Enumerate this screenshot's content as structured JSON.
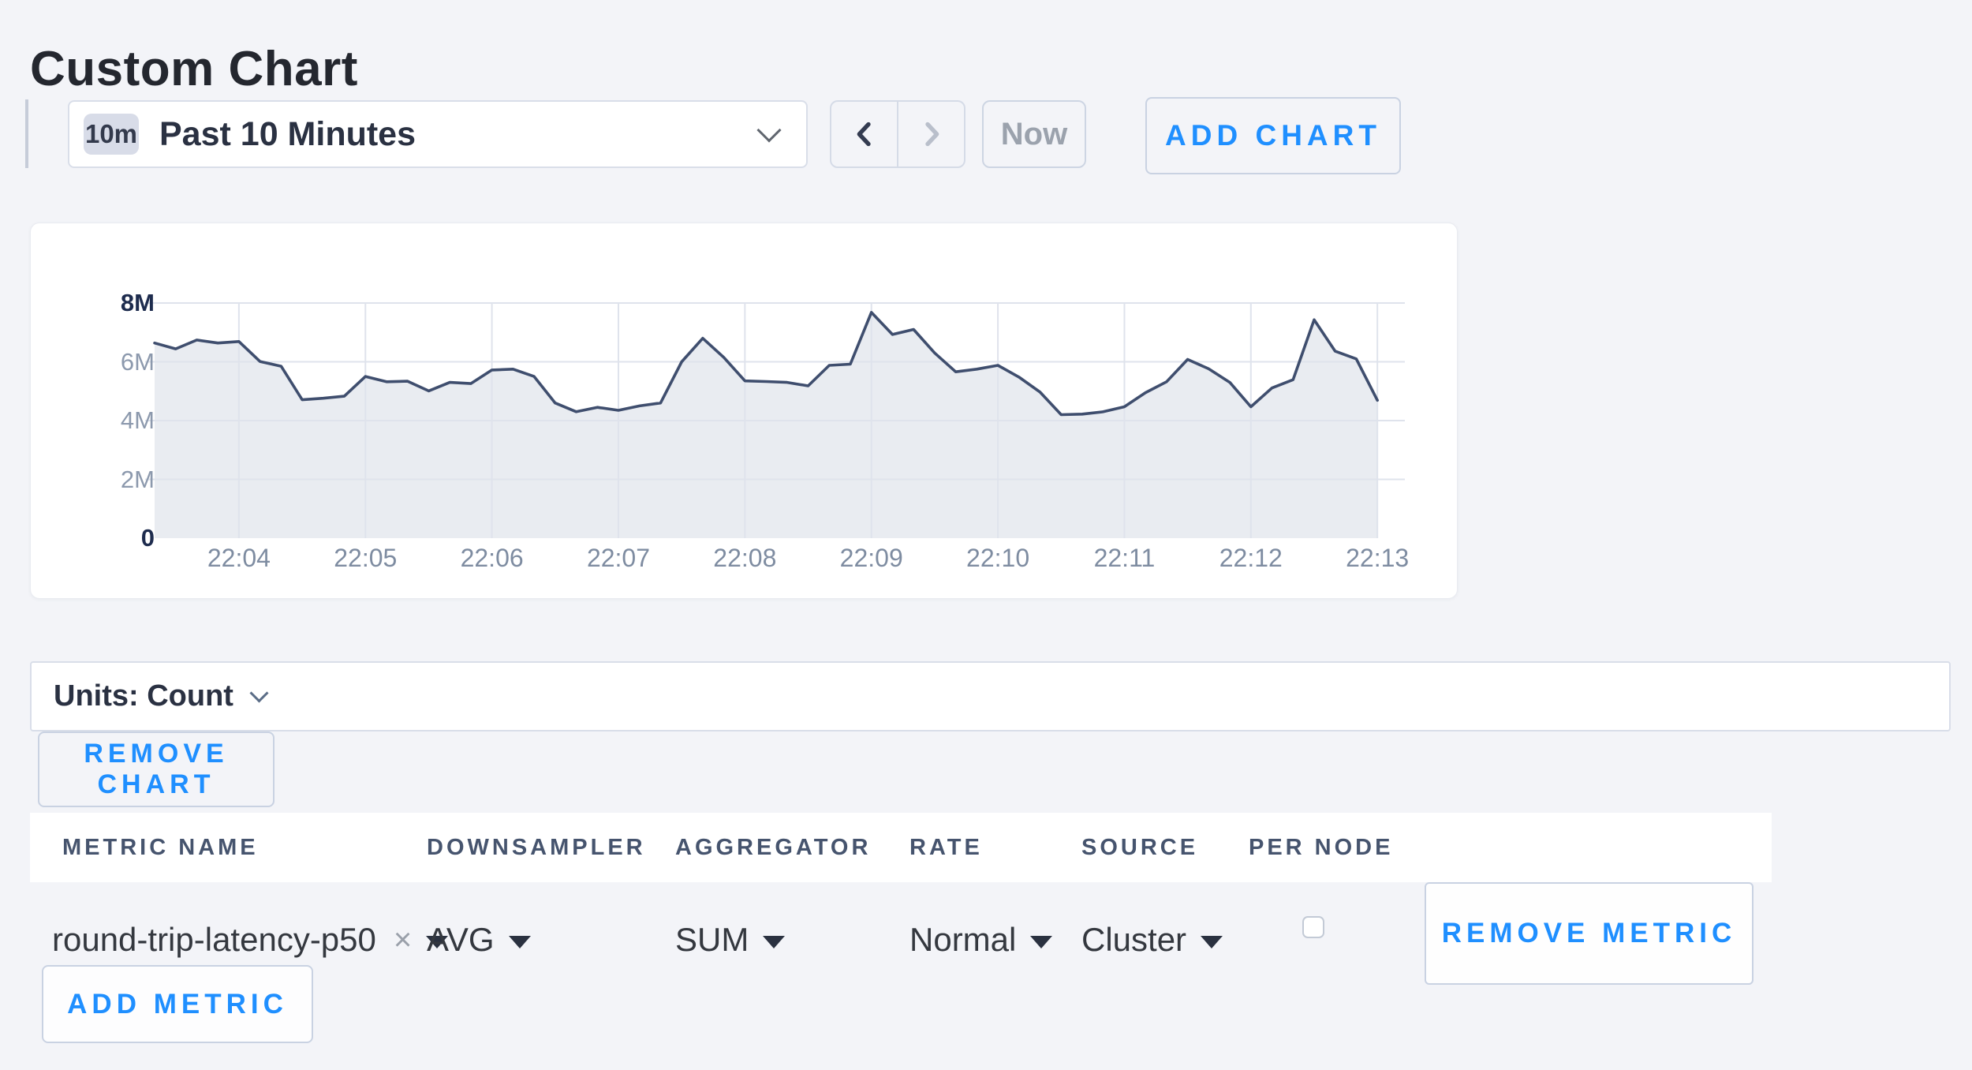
{
  "page": {
    "title": "Custom Chart"
  },
  "toolbar": {
    "time_badge": "10m",
    "time_range": "Past 10 Minutes",
    "now_label": "Now",
    "add_chart_label": "ADD CHART"
  },
  "chart_data": {
    "type": "area",
    "title": "",
    "xlabel": "",
    "ylabel": "",
    "legend": false,
    "grid": true,
    "x_start_time": "22:03:20",
    "x_interval_seconds": 10,
    "x_ticks": [
      "22:04",
      "22:05",
      "22:06",
      "22:07",
      "22:08",
      "22:09",
      "22:10",
      "22:11",
      "22:12",
      "22:13"
    ],
    "x_tick_first_index": 4,
    "x_tick_every": 6,
    "ylim_millions": [
      0,
      8
    ],
    "y_ticks": [
      {
        "label": "0",
        "value_millions": 0,
        "strong": true
      },
      {
        "label": "2M",
        "value_millions": 2,
        "strong": false
      },
      {
        "label": "4M",
        "value_millions": 4,
        "strong": false
      },
      {
        "label": "6M",
        "value_millions": 6,
        "strong": false
      },
      {
        "label": "8M",
        "value_millions": 8,
        "strong": true
      }
    ],
    "line_color": "#3f4e6e",
    "fill_color": "#e9ecf1",
    "grid_color": "#dfe3ec",
    "series": [
      {
        "name": "round-trip-latency-p50",
        "unit": "count",
        "values_in_millions": [
          6.64,
          6.44,
          6.74,
          6.64,
          6.69,
          6.01,
          5.85,
          4.71,
          4.76,
          4.83,
          5.5,
          5.32,
          5.34,
          5.01,
          5.3,
          5.26,
          5.72,
          5.75,
          5.5,
          4.6,
          4.3,
          4.45,
          4.35,
          4.5,
          4.6,
          6.0,
          6.8,
          6.15,
          5.35,
          5.33,
          5.3,
          5.18,
          5.88,
          5.92,
          7.68,
          6.93,
          7.1,
          6.3,
          5.66,
          5.75,
          5.88,
          5.48,
          4.97,
          4.2,
          4.22,
          4.3,
          4.47,
          4.95,
          5.32,
          6.08,
          5.76,
          5.3,
          4.47,
          5.11,
          5.39,
          7.43,
          6.36,
          6.1,
          4.69
        ]
      }
    ]
  },
  "units_bar": {
    "label": "Units: Count"
  },
  "chart_actions": {
    "remove_chart_label": "REMOVE CHART"
  },
  "table": {
    "headers": [
      "METRIC NAME",
      "DOWNSAMPLER",
      "AGGREGATOR",
      "RATE",
      "SOURCE",
      "PER NODE"
    ],
    "row": {
      "metric_name": "round-trip-latency-p50",
      "downsampler": "AVG",
      "aggregator": "SUM",
      "rate": "Normal",
      "source": "Cluster",
      "per_node_checked": false,
      "remove_metric_label": "REMOVE METRIC"
    },
    "add_metric_label": "ADD METRIC"
  },
  "colors": {
    "accent_blue": "#1f8fff"
  }
}
